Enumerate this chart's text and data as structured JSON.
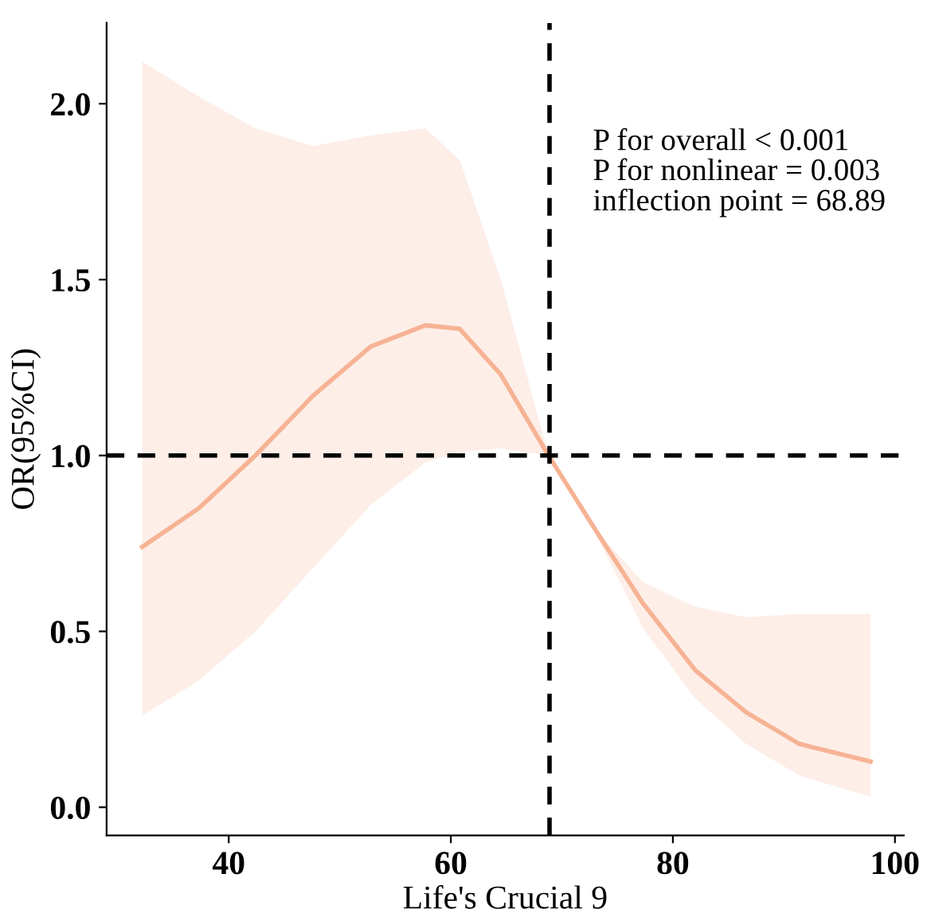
{
  "chart_data": {
    "type": "line",
    "xlabel": "Life's Crucial 9",
    "ylabel": "OR(95%CI)",
    "x": [
      32.2,
      37.3,
      42.4,
      47.6,
      52.8,
      57.7,
      60.8,
      64.5,
      68.8,
      73,
      77.3,
      82,
      86.6,
      91.4,
      97.8
    ],
    "series": [
      {
        "color": "#f6b394",
        "values": [
          0.74,
          0.85,
          1.0,
          1.17,
          1.31,
          1.37,
          1.36,
          1.23,
          1.0,
          0.79,
          0.58,
          0.39,
          0.27,
          0.18,
          0.13
        ],
        "lower": [
          0.26,
          0.36,
          0.5,
          0.68,
          0.86,
          0.98,
          1.01,
          1.02,
          1.0,
          0.78,
          0.51,
          0.31,
          0.18,
          0.09,
          0.03
        ],
        "upper": [
          2.12,
          2.02,
          1.93,
          1.88,
          1.91,
          1.93,
          1.84,
          1.5,
          1.0,
          0.79,
          0.64,
          0.57,
          0.54,
          0.55,
          0.55
        ]
      }
    ],
    "xlim": [
      29,
      100.8
    ],
    "ylim": [
      -0.08,
      2.23
    ],
    "xticks": [
      40,
      60,
      80,
      100
    ],
    "yticks": [
      {
        "value": 0,
        "label": "0.0"
      },
      0.5,
      {
        "value": 1,
        "label": "1.0"
      },
      1.5,
      {
        "value": 2,
        "label": "2.0"
      }
    ],
    "ref_lines": [
      {
        "axis": "x",
        "value": 68.89,
        "color": "#000000",
        "line_style": "dashed"
      },
      {
        "axis": "y",
        "value": 1,
        "color": "#000000",
        "line_style": "dashed"
      }
    ],
    "annotations": [
      "P for overall < 0.001",
      "P for nonlinear = 0.003",
      "inflection point = 68.89"
    ],
    "grid": false,
    "legend": false,
    "marker": "none",
    "line_style": "solid"
  }
}
